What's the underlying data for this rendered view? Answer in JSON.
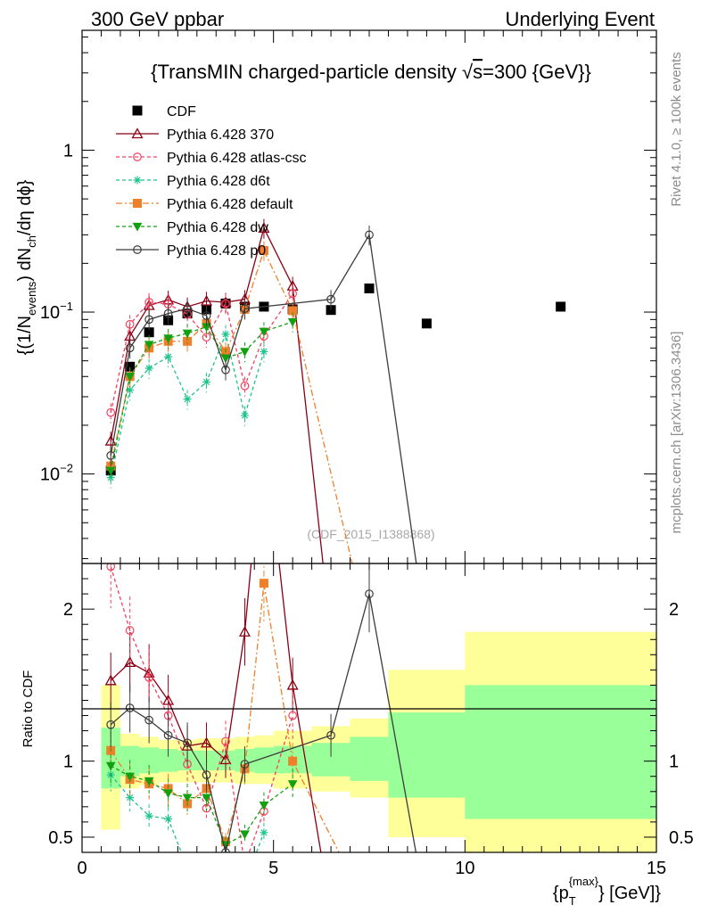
{
  "header": {
    "left": "300 GeV ppbar",
    "right": "Underlying Event"
  },
  "side_labels": {
    "rivet": "Rivet 4.1.0, ≥ 100k events",
    "mcplots": "mcplots.cern.ch [arXiv:1306.3436]"
  },
  "watermark": "(CDF_2015_I1388868)",
  "colors": {
    "CDF": "#000000",
    "p370": "#8b0015",
    "atlas": "#f5405f",
    "d6t": "#1ec48c",
    "default": "#f07f2a",
    "dw": "#10a010",
    "p0": "#3c3c3c",
    "band_syst": "#ffff99",
    "band_stat": "#99ff99"
  },
  "chart_data": {
    "type": "scatter",
    "title": "{TransMIN charged-particle density √s=300 {GeV}}",
    "title_parts": {
      "before": "{TransMIN charged-particle density ",
      "root": "√",
      "s": "s",
      "after": "=300 {GeV}}"
    },
    "ylabel": "{(1/N_events) dN_ch/dη dϕ}",
    "ylabel_parts": {
      "a": "{(1/N",
      "a_sub": "events",
      "b": ") dN",
      "b_sub": "ch",
      "c": "/dη dϕ}"
    },
    "xlabel": "{p_T^{max}} [GeV]}",
    "xlabel_parts": {
      "a": "{p",
      "sub": "T",
      "sup": "{max}",
      "b": "} [GeV]}"
    },
    "ratio_ylabel": "Ratio to CDF",
    "xlim": [
      0,
      15
    ],
    "ylim_main": [
      0.0028,
      5.5
    ],
    "ylim_ratio": [
      0.4,
      2.3
    ],
    "x_ticks": [
      "0",
      "5",
      "10",
      "15"
    ],
    "y_ticks_main": [
      {
        "m": "10",
        "e": "−2",
        "v": 0.01
      },
      {
        "m": "10",
        "e": "−1",
        "v": 0.1
      },
      {
        "m": "1",
        "e": "",
        "v": 1
      }
    ],
    "y_ticks_ratio": [
      "0.5",
      "1",
      "2"
    ],
    "legend_position": "top-left",
    "series": [
      {
        "name": "CDF",
        "key": "CDF",
        "marker": "square",
        "dash": "",
        "filled": true,
        "points": [
          [
            0.75,
            0.0105
          ],
          [
            1.25,
            0.046
          ],
          [
            1.75,
            0.075
          ],
          [
            2.25,
            0.089
          ],
          [
            2.75,
            0.098
          ],
          [
            3.25,
            0.104
          ],
          [
            3.75,
            0.113
          ],
          [
            4.25,
            0.108
          ],
          [
            4.75,
            0.108
          ],
          [
            5.5,
            0.104
          ],
          [
            6.5,
            0.103
          ],
          [
            7.5,
            0.14
          ],
          [
            9,
            0.085
          ],
          [
            12.5,
            0.108
          ]
        ],
        "ratio": []
      },
      {
        "name": "Pythia 6.428 370",
        "key": "p370",
        "marker": "triangle",
        "dash": "",
        "filled": false,
        "points": [
          [
            0.75,
            0.016
          ],
          [
            1.25,
            0.071
          ],
          [
            1.75,
            0.11
          ],
          [
            2.25,
            0.119
          ],
          [
            2.75,
            0.108
          ],
          [
            3.25,
            0.117
          ],
          [
            3.75,
            0.115
          ],
          [
            4.25,
            0.12
          ],
          [
            4.75,
            0.33
          ],
          [
            5.5,
            0.145
          ],
          [
            6.5,
            0.001
          ]
        ],
        "ratio": [
          [
            0.75,
            1.53
          ],
          [
            1.25,
            1.65
          ],
          [
            1.75,
            1.58
          ],
          [
            2.25,
            1.4
          ],
          [
            2.75,
            1.1
          ],
          [
            3.25,
            1.12
          ],
          [
            3.75,
            1.01
          ],
          [
            4.25,
            1.85
          ],
          [
            4.75,
            3.2
          ],
          [
            5.5,
            1.5
          ],
          [
            6.5,
            0.01
          ]
        ]
      },
      {
        "name": "Pythia 6.428 atlas-csc",
        "key": "atlas",
        "marker": "circle",
        "dash": "4,3",
        "filled": false,
        "points": [
          [
            0.75,
            0.024
          ],
          [
            1.25,
            0.084
          ],
          [
            1.75,
            0.115
          ],
          [
            2.25,
            0.112
          ],
          [
            2.75,
            0.097
          ],
          [
            3.25,
            0.07
          ],
          [
            3.75,
            0.113
          ],
          [
            4.25,
            0.035
          ],
          [
            4.75,
            0.071
          ],
          [
            5.5,
            0.13
          ]
        ],
        "ratio": [
          [
            0.75,
            2.28
          ],
          [
            1.25,
            1.86
          ],
          [
            1.75,
            1.55
          ],
          [
            2.25,
            1.3
          ],
          [
            2.75,
            0.98
          ],
          [
            3.25,
            0.69
          ],
          [
            3.75,
            1.13
          ],
          [
            4.25,
            0.32
          ],
          [
            4.75,
            0.67
          ],
          [
            5.5,
            1.3
          ]
        ]
      },
      {
        "name": "Pythia 6.428 d6t",
        "key": "d6t",
        "marker": "star",
        "dash": "4,3",
        "filled": false,
        "points": [
          [
            0.75,
            0.0095
          ],
          [
            1.25,
            0.033
          ],
          [
            1.75,
            0.045
          ],
          [
            2.25,
            0.053
          ],
          [
            2.75,
            0.029
          ],
          [
            3.25,
            0.037
          ],
          [
            3.75,
            0.073
          ],
          [
            4.25,
            0.023
          ],
          [
            4.75,
            0.057
          ]
        ],
        "ratio": [
          [
            0.75,
            0.91
          ],
          [
            1.25,
            0.76
          ],
          [
            1.75,
            0.64
          ],
          [
            2.25,
            0.62
          ],
          [
            2.75,
            0.3
          ],
          [
            3.25,
            0.36
          ],
          [
            3.75,
            0.35
          ],
          [
            4.25,
            0.2
          ],
          [
            4.75,
            0.53
          ]
        ]
      },
      {
        "name": "Pythia 6.428 default",
        "key": "default",
        "marker": "square",
        "dash": "7,3,2,3",
        "filled": true,
        "points": [
          [
            0.75,
            0.0112
          ],
          [
            1.25,
            0.04
          ],
          [
            1.75,
            0.06
          ],
          [
            2.25,
            0.066
          ],
          [
            2.75,
            0.066
          ],
          [
            3.25,
            0.085
          ],
          [
            3.75,
            0.057
          ],
          [
            4.25,
            0.104
          ],
          [
            4.75,
            0.24
          ],
          [
            5.5,
            0.102
          ],
          [
            7.5,
            0.001
          ]
        ],
        "ratio": [
          [
            0.75,
            1.07
          ],
          [
            1.25,
            0.88
          ],
          [
            1.75,
            0.85
          ],
          [
            2.25,
            0.82
          ],
          [
            2.75,
            0.72
          ],
          [
            3.25,
            0.82
          ],
          [
            3.75,
            0.47
          ],
          [
            4.25,
            0.95
          ],
          [
            4.75,
            2.17
          ],
          [
            5.5,
            1.0
          ],
          [
            7.5,
            0.008
          ]
        ]
      },
      {
        "name": "Pythia 6.428 dw",
        "key": "dw",
        "marker": "triangle-down",
        "dash": "4,3",
        "filled": true,
        "points": [
          [
            0.75,
            0.0105
          ],
          [
            1.25,
            0.04
          ],
          [
            1.75,
            0.063
          ],
          [
            2.25,
            0.069
          ],
          [
            2.75,
            0.074
          ],
          [
            3.25,
            0.081
          ],
          [
            3.75,
            0.052
          ],
          [
            4.25,
            0.057
          ],
          [
            4.75,
            0.076
          ],
          [
            5.5,
            0.087
          ]
        ],
        "ratio": [
          [
            0.75,
            0.97
          ],
          [
            1.25,
            0.9
          ],
          [
            1.75,
            0.87
          ],
          [
            2.25,
            0.79
          ],
          [
            2.75,
            0.76
          ],
          [
            3.25,
            0.76
          ],
          [
            3.75,
            0.45
          ],
          [
            4.25,
            0.52
          ],
          [
            4.75,
            0.71
          ],
          [
            5.5,
            0.85
          ]
        ]
      },
      {
        "name": "Pythia 6.428 p0",
        "key": "p0",
        "marker": "circle",
        "dash": "",
        "filled": false,
        "points": [
          [
            0.75,
            0.013
          ],
          [
            1.25,
            0.06
          ],
          [
            1.75,
            0.09
          ],
          [
            2.25,
            0.098
          ],
          [
            2.75,
            0.105
          ],
          [
            3.25,
            0.095
          ],
          [
            3.75,
            0.044
          ],
          [
            4.25,
            0.105
          ],
          [
            6.5,
            0.12
          ],
          [
            7.5,
            0.3
          ],
          [
            9,
            0.001
          ]
        ],
        "ratio": [
          [
            0.75,
            1.24
          ],
          [
            1.25,
            1.35
          ],
          [
            1.75,
            1.27
          ],
          [
            2.25,
            1.17
          ],
          [
            2.75,
            1.12
          ],
          [
            3.25,
            0.91
          ],
          [
            3.75,
            0.4
          ],
          [
            4.25,
            0.98
          ],
          [
            6.5,
            1.17
          ],
          [
            7.5,
            2.1
          ],
          [
            9,
            0.01
          ]
        ]
      }
    ],
    "ratio_bands": [
      {
        "x0": 0.5,
        "x1": 1.0,
        "syst": [
          0.55,
          1.5
        ],
        "stat": [
          0.82,
          1.22
        ]
      },
      {
        "x0": 1.0,
        "x1": 1.5,
        "syst": [
          0.82,
          1.18
        ],
        "stat": [
          0.9,
          1.1
        ]
      },
      {
        "x0": 1.5,
        "x1": 2.0,
        "syst": [
          0.84,
          1.16
        ],
        "stat": [
          0.92,
          1.09
        ]
      },
      {
        "x0": 2.0,
        "x1": 2.5,
        "syst": [
          0.86,
          1.14
        ],
        "stat": [
          0.93,
          1.08
        ]
      },
      {
        "x0": 2.5,
        "x1": 3.0,
        "syst": [
          0.86,
          1.14
        ],
        "stat": [
          0.94,
          1.07
        ]
      },
      {
        "x0": 3.0,
        "x1": 3.5,
        "syst": [
          0.86,
          1.15
        ],
        "stat": [
          0.94,
          1.07
        ]
      },
      {
        "x0": 3.5,
        "x1": 4.0,
        "syst": [
          0.86,
          1.15
        ],
        "stat": [
          0.94,
          1.07
        ]
      },
      {
        "x0": 4.0,
        "x1": 4.5,
        "syst": [
          0.85,
          1.16
        ],
        "stat": [
          0.93,
          1.08
        ]
      },
      {
        "x0": 4.5,
        "x1": 5.0,
        "syst": [
          0.85,
          1.17
        ],
        "stat": [
          0.92,
          1.09
        ]
      },
      {
        "x0": 5.0,
        "x1": 6.0,
        "syst": [
          0.82,
          1.2
        ],
        "stat": [
          0.92,
          1.1
        ]
      },
      {
        "x0": 6.0,
        "x1": 7.0,
        "syst": [
          0.8,
          1.23
        ],
        "stat": [
          0.9,
          1.12
        ]
      },
      {
        "x0": 7.0,
        "x1": 8.0,
        "syst": [
          0.76,
          1.28
        ],
        "stat": [
          0.87,
          1.16
        ]
      },
      {
        "x0": 8.0,
        "x1": 10.0,
        "syst": [
          0.5,
          1.6
        ],
        "stat": [
          0.76,
          1.32
        ]
      },
      {
        "x0": 10.0,
        "x1": 15.0,
        "syst": [
          0.4,
          1.85
        ],
        "stat": [
          0.62,
          1.5
        ]
      }
    ]
  }
}
